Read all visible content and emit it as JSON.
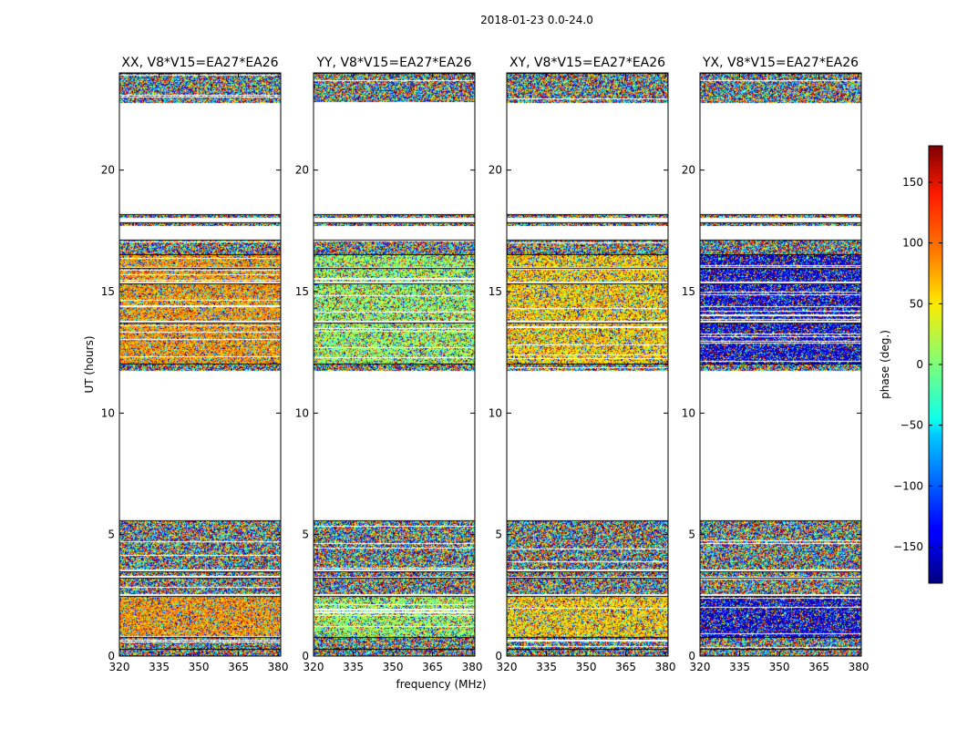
{
  "figure_title": "2018-01-23 0.0-24.0",
  "colors": {
    "background": "#ffffff",
    "axes": "#000000",
    "colormap": "jet"
  },
  "chart_data": {
    "type": "heatmap",
    "suptitle": "2018-01-23 0.0-24.0",
    "xlabel": "frequency (MHz)",
    "ylabel": "UT (hours)",
    "xlim": [
      320,
      381
    ],
    "ylim": [
      0,
      24
    ],
    "x_tick_values": [
      320,
      335,
      350,
      365,
      380
    ],
    "x_tick_labels": [
      "320",
      "335",
      "350",
      "365",
      "380"
    ],
    "y_tick_values": [
      0,
      5,
      10,
      15,
      20
    ],
    "y_tick_labels": [
      "0",
      "5",
      "10",
      "15",
      "20"
    ],
    "data_time_bands_hours": [
      [
        0.0,
        0.25
      ],
      [
        0.3,
        0.75
      ],
      [
        0.8,
        2.45
      ],
      [
        2.55,
        3.2
      ],
      [
        3.25,
        3.45
      ],
      [
        3.55,
        5.55
      ],
      [
        11.75,
        12.0
      ],
      [
        12.05,
        13.7
      ],
      [
        13.8,
        15.3
      ],
      [
        15.4,
        15.95
      ],
      [
        16.0,
        16.5
      ],
      [
        16.55,
        17.1
      ],
      [
        17.7,
        17.8
      ],
      [
        18.05,
        18.15
      ],
      [
        22.75,
        24.0
      ]
    ],
    "panels": [
      {
        "title": "XX, V8*V15=EA27*EA26",
        "polarization": "XX",
        "dominant_phase_deg": 80
      },
      {
        "title": "YY, V8*V15=EA27*EA26",
        "polarization": "YY",
        "dominant_phase_deg": 10
      },
      {
        "title": "XY, V8*V15=EA27*EA26",
        "polarization": "XY",
        "dominant_phase_deg": 60
      },
      {
        "title": "YX, V8*V15=EA27*EA26",
        "polarization": "YX",
        "dominant_phase_deg": -150
      }
    ],
    "colorbar": {
      "label": "phase (deg.)",
      "range": [
        -180,
        180
      ],
      "tick_values": [
        150,
        100,
        50,
        0,
        -50,
        -100,
        -150
      ],
      "tick_labels": [
        "150",
        "100",
        "50",
        "0",
        "−50",
        "−100",
        "−150"
      ]
    }
  }
}
